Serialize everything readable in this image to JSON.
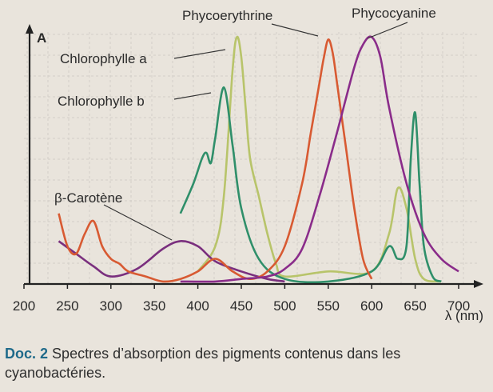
{
  "caption": {
    "doc_label": "Doc. 2",
    "text": "Spectres d’absorption des pigments contenus dans les cyanobactéries."
  },
  "chart_data": {
    "type": "line",
    "title": "",
    "ylabel": "A",
    "xlabel": "λ (nm)",
    "xlim": [
      200,
      715
    ],
    "ylim": [
      0,
      1.0
    ],
    "x_ticks": [
      200,
      250,
      300,
      350,
      400,
      450,
      500,
      550,
      600,
      650,
      700
    ],
    "grid": true,
    "series": [
      {
        "name": "Chlorophylle a",
        "color": "#b8c46a",
        "x": [
          400,
          420,
          430,
          440,
          445,
          450,
          455,
          460,
          470,
          480,
          490,
          500,
          550,
          600,
          620,
          630,
          640,
          650,
          660,
          680
        ],
        "y": [
          0.05,
          0.15,
          0.35,
          0.85,
          0.98,
          0.9,
          0.7,
          0.5,
          0.35,
          0.2,
          0.08,
          0.03,
          0.05,
          0.05,
          0.2,
          0.38,
          0.3,
          0.1,
          0.02,
          0.01
        ]
      },
      {
        "name": "Chlorophylle b",
        "color": "#2f8f6a",
        "x": [
          380,
          395,
          405,
          410,
          415,
          420,
          430,
          440,
          450,
          470,
          500,
          550,
          600,
          620,
          630,
          640,
          645,
          650,
          655,
          660,
          670,
          680
        ],
        "y": [
          0.28,
          0.4,
          0.5,
          0.52,
          0.48,
          0.58,
          0.78,
          0.55,
          0.3,
          0.1,
          0.02,
          0.01,
          0.05,
          0.15,
          0.1,
          0.15,
          0.5,
          0.68,
          0.4,
          0.15,
          0.03,
          0.01
        ]
      },
      {
        "name": "β-Carotène",
        "color": "#7a2f7e",
        "x": [
          240,
          260,
          280,
          300,
          330,
          360,
          380,
          400,
          420,
          450,
          480,
          500
        ],
        "y": [
          0.17,
          0.12,
          0.07,
          0.03,
          0.06,
          0.14,
          0.17,
          0.15,
          0.09,
          0.05,
          0.02,
          0.01
        ]
      },
      {
        "name": "Phycoerythrine",
        "color": "#d85a32",
        "x": [
          240,
          250,
          260,
          270,
          280,
          290,
          300,
          310,
          320,
          340,
          360,
          380,
          400,
          420,
          440,
          460,
          480,
          500,
          520,
          530,
          540,
          545,
          550,
          555,
          560,
          570,
          580,
          590,
          600
        ],
        "y": [
          0.28,
          0.15,
          0.12,
          0.2,
          0.25,
          0.15,
          0.1,
          0.08,
          0.05,
          0.03,
          0.01,
          0.02,
          0.05,
          0.1,
          0.05,
          0.02,
          0.05,
          0.15,
          0.4,
          0.6,
          0.8,
          0.9,
          0.97,
          0.92,
          0.8,
          0.55,
          0.3,
          0.1,
          0.02
        ]
      },
      {
        "name": "Phycocyanine",
        "color": "#8a2c8a",
        "x": [
          380,
          420,
          450,
          480,
          500,
          520,
          540,
          560,
          580,
          590,
          600,
          610,
          620,
          640,
          660,
          680,
          700
        ],
        "y": [
          0.01,
          0.01,
          0.02,
          0.03,
          0.06,
          0.14,
          0.35,
          0.6,
          0.86,
          0.95,
          0.98,
          0.9,
          0.7,
          0.4,
          0.2,
          0.1,
          0.05
        ]
      }
    ]
  }
}
